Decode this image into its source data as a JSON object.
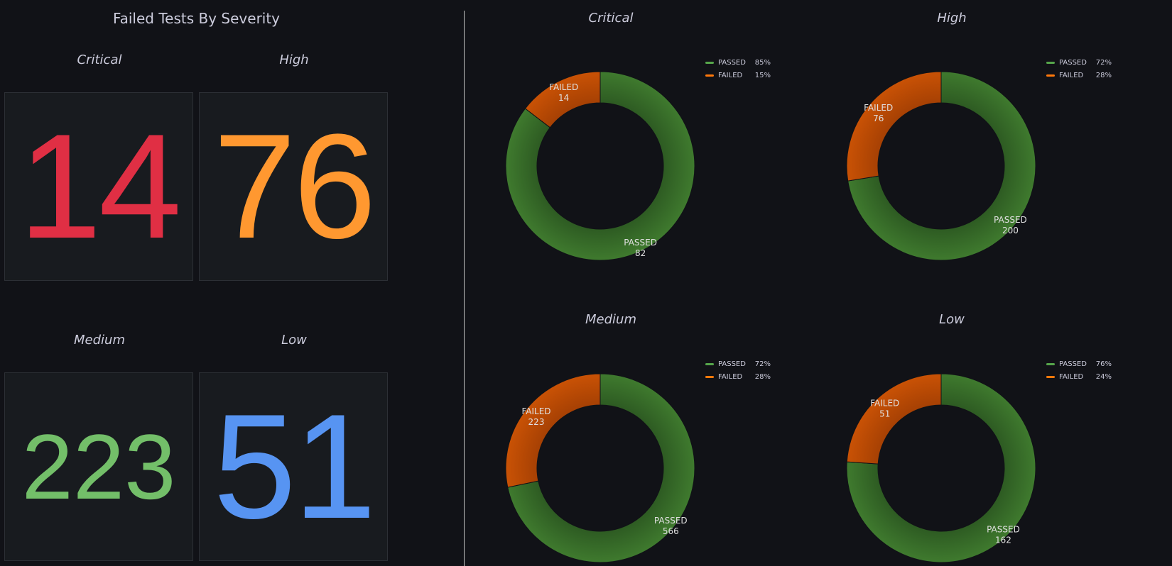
{
  "left": {
    "title": "Failed Tests By Severity",
    "stats": [
      {
        "title": "Critical",
        "value": "14",
        "color": "#e02f44"
      },
      {
        "title": "High",
        "value": "76",
        "color": "#ff9830"
      },
      {
        "title": "Medium",
        "value": "223",
        "color": "#73bf69"
      },
      {
        "title": "Low",
        "value": "51",
        "color": "#5794f2"
      }
    ]
  },
  "legend_labels": {
    "passed": "PASSED",
    "failed": "FAILED"
  },
  "colors": {
    "passed": "#3f7a2e",
    "failed": "#c95205",
    "legend_passed": "#56a64b",
    "legend_failed": "#ff780a"
  },
  "chart_data": [
    {
      "type": "pie",
      "title": "Critical",
      "labels": [
        "PASSED",
        "FAILED"
      ],
      "values": [
        82,
        14
      ],
      "percents": [
        "85%",
        "15%"
      ],
      "donut": true,
      "legend_placement": "top-right"
    },
    {
      "type": "pie",
      "title": "High",
      "labels": [
        "PASSED",
        "FAILED"
      ],
      "values": [
        200,
        76
      ],
      "percents": [
        "72%",
        "28%"
      ],
      "donut": true,
      "legend_placement": "top-right"
    },
    {
      "type": "pie",
      "title": "Medium",
      "labels": [
        "PASSED",
        "FAILED"
      ],
      "values": [
        566,
        223
      ],
      "percents": [
        "72%",
        "28%"
      ],
      "donut": true,
      "legend_placement": "top-right"
    },
    {
      "type": "pie",
      "title": "Low",
      "labels": [
        "PASSED",
        "FAILED"
      ],
      "values": [
        162,
        51
      ],
      "percents": [
        "76%",
        "24%"
      ],
      "donut": true,
      "legend_placement": "top-right"
    }
  ]
}
